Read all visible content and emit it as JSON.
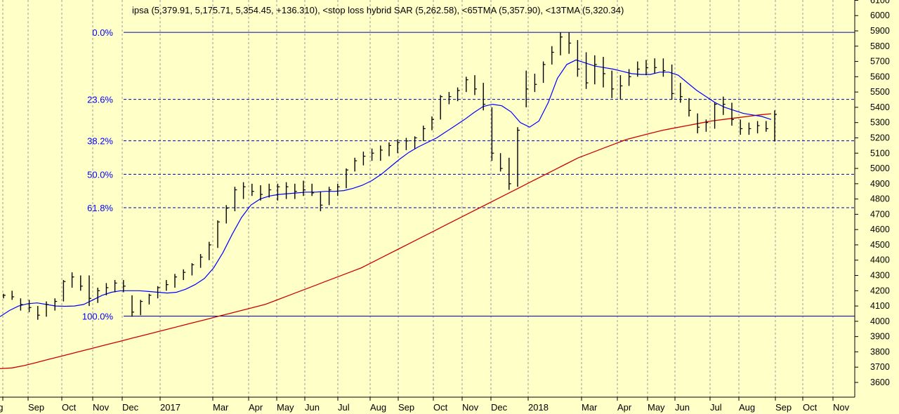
{
  "chart_data": {
    "type": "ohlc",
    "title": "ipsa (5,379.91, 5,175.71, 5,354.45, +136.310), <stop loss hybrid SAR (5,262.58), <65TMA (5,357.90), <13TMA (5,320.34)",
    "xlabel": "",
    "ylabel": "",
    "ylim": [
      3480,
      6150
    ],
    "y_ticks": [
      3600,
      3700,
      3800,
      3900,
      4000,
      4100,
      4200,
      4300,
      4400,
      4500,
      4600,
      4700,
      4800,
      4900,
      5000,
      5100,
      5200,
      5300,
      5400,
      5500,
      5600,
      5700,
      5800,
      5900,
      6000,
      6100
    ],
    "x_ticks": [
      "ug",
      "Sep",
      "Oct",
      "Nov",
      "Dec",
      "2017",
      "Mar",
      "Apr",
      "May",
      "Jun",
      "Jul",
      "Aug",
      "Sep",
      "Oct",
      "Nov",
      "Dec",
      "2018",
      "Mar",
      "Apr",
      "May",
      "Jun",
      "Jul",
      "Aug",
      "Sep",
      "Oct",
      "Nov"
    ],
    "grid": true,
    "colors": {
      "background": "#ffffc8",
      "bars": "#000000",
      "fib_lines": "#0000aa",
      "fib_text": "#0000ff",
      "tma13": "#0000ff",
      "tma65": "#cc0000",
      "grid": "#999999"
    },
    "fibonacci": [
      {
        "label": "0.0%",
        "value": 5890
      },
      {
        "label": "23.6%",
        "value": 5452
      },
      {
        "label": "38.2%",
        "value": 5181
      },
      {
        "label": "50.0%",
        "value": 4962
      },
      {
        "label": "61.8%",
        "value": 4743
      },
      {
        "label": "100.0%",
        "value": 4034
      }
    ],
    "ohlc": [
      {
        "h": 4180,
        "l": 4150,
        "c": 4170
      },
      {
        "h": 4200,
        "l": 4140,
        "c": 4160
      },
      {
        "h": 4150,
        "l": 4070,
        "c": 4110
      },
      {
        "h": 4140,
        "l": 4060,
        "c": 4090
      },
      {
        "h": 4100,
        "l": 4010,
        "c": 4040
      },
      {
        "h": 4130,
        "l": 4030,
        "c": 4110
      },
      {
        "h": 4150,
        "l": 4070,
        "c": 4130
      },
      {
        "h": 4270,
        "l": 4130,
        "c": 4260
      },
      {
        "h": 4320,
        "l": 4220,
        "c": 4290
      },
      {
        "h": 4300,
        "l": 4200,
        "c": 4230
      },
      {
        "h": 4300,
        "l": 4100,
        "c": 4150
      },
      {
        "h": 4220,
        "l": 4120,
        "c": 4200
      },
      {
        "h": 4250,
        "l": 4170,
        "c": 4220
      },
      {
        "h": 4270,
        "l": 4190,
        "c": 4250
      },
      {
        "h": 4270,
        "l": 4190,
        "c": 4230
      },
      {
        "h": 4170,
        "l": 4030,
        "c": 4060
      },
      {
        "h": 4140,
        "l": 4040,
        "c": 4130
      },
      {
        "h": 4180,
        "l": 4110,
        "c": 4170
      },
      {
        "h": 4230,
        "l": 4150,
        "c": 4220
      },
      {
        "h": 4270,
        "l": 4200,
        "c": 4240
      },
      {
        "h": 4310,
        "l": 4220,
        "c": 4290
      },
      {
        "h": 4340,
        "l": 4270,
        "c": 4320
      },
      {
        "h": 4380,
        "l": 4300,
        "c": 4370
      },
      {
        "h": 4440,
        "l": 4350,
        "c": 4420
      },
      {
        "h": 4520,
        "l": 4400,
        "c": 4500
      },
      {
        "h": 4660,
        "l": 4480,
        "c": 4650
      },
      {
        "h": 4760,
        "l": 4640,
        "c": 4740
      },
      {
        "h": 4880,
        "l": 4720,
        "c": 4860
      },
      {
        "h": 4910,
        "l": 4800,
        "c": 4880
      },
      {
        "h": 4900,
        "l": 4820,
        "c": 4850
      },
      {
        "h": 4890,
        "l": 4790,
        "c": 4830
      },
      {
        "h": 4900,
        "l": 4810,
        "c": 4860
      },
      {
        "h": 4900,
        "l": 4790,
        "c": 4880
      },
      {
        "h": 4910,
        "l": 4800,
        "c": 4880
      },
      {
        "h": 4900,
        "l": 4800,
        "c": 4850
      },
      {
        "h": 4920,
        "l": 4820,
        "c": 4860
      },
      {
        "h": 4900,
        "l": 4820,
        "c": 4840
      },
      {
        "h": 4850,
        "l": 4720,
        "c": 4760
      },
      {
        "h": 4880,
        "l": 4760,
        "c": 4860
      },
      {
        "h": 4900,
        "l": 4820,
        "c": 4880
      },
      {
        "h": 5000,
        "l": 4870,
        "c": 4990
      },
      {
        "h": 5070,
        "l": 4980,
        "c": 5050
      },
      {
        "h": 5110,
        "l": 5020,
        "c": 5080
      },
      {
        "h": 5130,
        "l": 5050,
        "c": 5100
      },
      {
        "h": 5150,
        "l": 5050,
        "c": 5120
      },
      {
        "h": 5170,
        "l": 5080,
        "c": 5150
      },
      {
        "h": 5190,
        "l": 5100,
        "c": 5170
      },
      {
        "h": 5200,
        "l": 5120,
        "c": 5180
      },
      {
        "h": 5210,
        "l": 5130,
        "c": 5200
      },
      {
        "h": 5280,
        "l": 5180,
        "c": 5260
      },
      {
        "h": 5340,
        "l": 5250,
        "c": 5320
      },
      {
        "h": 5480,
        "l": 5320,
        "c": 5470
      },
      {
        "h": 5500,
        "l": 5420,
        "c": 5470
      },
      {
        "h": 5530,
        "l": 5440,
        "c": 5510
      },
      {
        "h": 5600,
        "l": 5500,
        "c": 5580
      },
      {
        "h": 5610,
        "l": 5480,
        "c": 5520
      },
      {
        "h": 5560,
        "l": 5380,
        "c": 5420
      },
      {
        "h": 5400,
        "l": 5050,
        "c": 5100
      },
      {
        "h": 5100,
        "l": 4980,
        "c": 5000
      },
      {
        "h": 5070,
        "l": 4860,
        "c": 4900
      },
      {
        "h": 5270,
        "l": 4880,
        "c": 5250
      },
      {
        "h": 5640,
        "l": 5400,
        "c": 5520
      },
      {
        "h": 5620,
        "l": 5500,
        "c": 5550
      },
      {
        "h": 5700,
        "l": 5560,
        "c": 5680
      },
      {
        "h": 5800,
        "l": 5680,
        "c": 5760
      },
      {
        "h": 5890,
        "l": 5740,
        "c": 5860
      },
      {
        "h": 5890,
        "l": 5750,
        "c": 5820
      },
      {
        "h": 5840,
        "l": 5600,
        "c": 5650
      },
      {
        "h": 5760,
        "l": 5520,
        "c": 5560
      },
      {
        "h": 5740,
        "l": 5550,
        "c": 5680
      },
      {
        "h": 5730,
        "l": 5530,
        "c": 5620
      },
      {
        "h": 5640,
        "l": 5460,
        "c": 5520
      },
      {
        "h": 5610,
        "l": 5450,
        "c": 5540
      },
      {
        "h": 5650,
        "l": 5540,
        "c": 5600
      },
      {
        "h": 5700,
        "l": 5600,
        "c": 5650
      },
      {
        "h": 5710,
        "l": 5610,
        "c": 5660
      },
      {
        "h": 5720,
        "l": 5620,
        "c": 5660
      },
      {
        "h": 5720,
        "l": 5600,
        "c": 5640
      },
      {
        "h": 5680,
        "l": 5450,
        "c": 5490
      },
      {
        "h": 5560,
        "l": 5430,
        "c": 5470
      },
      {
        "h": 5460,
        "l": 5340,
        "c": 5380
      },
      {
        "h": 5360,
        "l": 5230,
        "c": 5270
      },
      {
        "h": 5320,
        "l": 5240,
        "c": 5300
      },
      {
        "h": 5430,
        "l": 5260,
        "c": 5420
      },
      {
        "h": 5470,
        "l": 5350,
        "c": 5420
      },
      {
        "h": 5430,
        "l": 5280,
        "c": 5320
      },
      {
        "h": 5320,
        "l": 5220,
        "c": 5260
      },
      {
        "h": 5300,
        "l": 5220,
        "c": 5260
      },
      {
        "h": 5310,
        "l": 5230,
        "c": 5280
      },
      {
        "h": 5310,
        "l": 5240,
        "c": 5260
      },
      {
        "h": 5380,
        "l": 5176,
        "c": 5354
      }
    ],
    "tma13": [
      4030,
      4070,
      4100,
      4115,
      4120,
      4110,
      4100,
      4098,
      4100,
      4110,
      4140,
      4170,
      4190,
      4200,
      4200,
      4200,
      4195,
      4190,
      4185,
      4190,
      4210,
      4240,
      4280,
      4350,
      4450,
      4570,
      4680,
      4760,
      4800,
      4820,
      4830,
      4835,
      4840,
      4845,
      4845,
      4850,
      4850,
      4855,
      4870,
      4890,
      4920,
      4960,
      5010,
      5060,
      5105,
      5140,
      5170,
      5200,
      5240,
      5280,
      5320,
      5365,
      5405,
      5420,
      5410,
      5370,
      5300,
      5270,
      5310,
      5430,
      5590,
      5680,
      5710,
      5690,
      5670,
      5660,
      5650,
      5635,
      5620,
      5615,
      5615,
      5630,
      5630,
      5610,
      5560,
      5510,
      5470,
      5430,
      5400,
      5380,
      5360,
      5350,
      5340,
      5320
    ],
    "tma65": [
      3690,
      3695,
      3710,
      3730,
      3750,
      3770,
      3790,
      3810,
      3830,
      3850,
      3870,
      3890,
      3910,
      3930,
      3950,
      3970,
      3990,
      4010,
      4030,
      4050,
      4070,
      4090,
      4110,
      4140,
      4170,
      4200,
      4230,
      4260,
      4290,
      4320,
      4350,
      4390,
      4430,
      4470,
      4510,
      4550,
      4590,
      4630,
      4670,
      4710,
      4750,
      4790,
      4830,
      4870,
      4910,
      4950,
      4990,
      5030,
      5070,
      5100,
      5130,
      5160,
      5190,
      5210,
      5230,
      5250,
      5265,
      5280,
      5295,
      5310,
      5320,
      5330,
      5340,
      5350,
      5358
    ]
  }
}
